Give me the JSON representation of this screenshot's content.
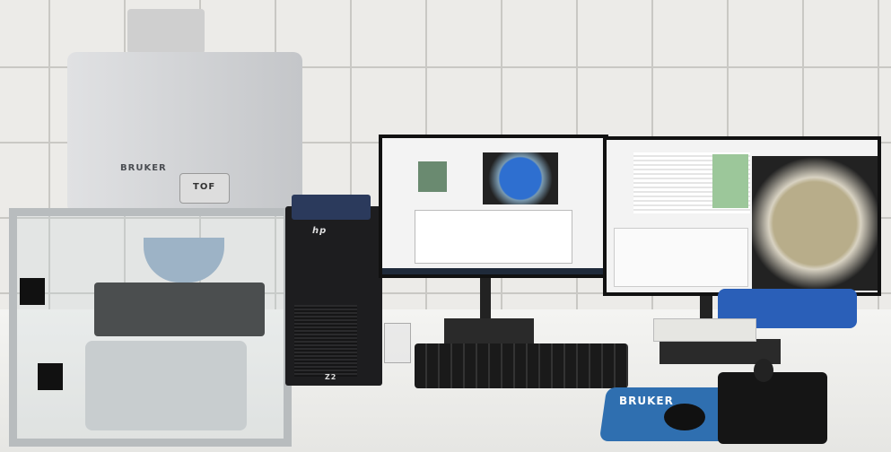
{
  "scene": "lab bench with instrument, workstation and two monitors",
  "logos": {
    "instrument": "BRUKER",
    "module": "TOF",
    "pc_brand": "hp",
    "pc_model": "Z2",
    "mousepad": "BRUKER"
  },
  "colors": {
    "wall_tile": "#ecebe8",
    "grout": "#c9c8c4",
    "instrument": "#d5d6d8",
    "frame": "#b8bcbe",
    "mousepad": "#2f6fb0",
    "case": "#2a5fb8",
    "scan_blue": "#2e6fd0",
    "scan_beige": "#b8ad8a"
  }
}
